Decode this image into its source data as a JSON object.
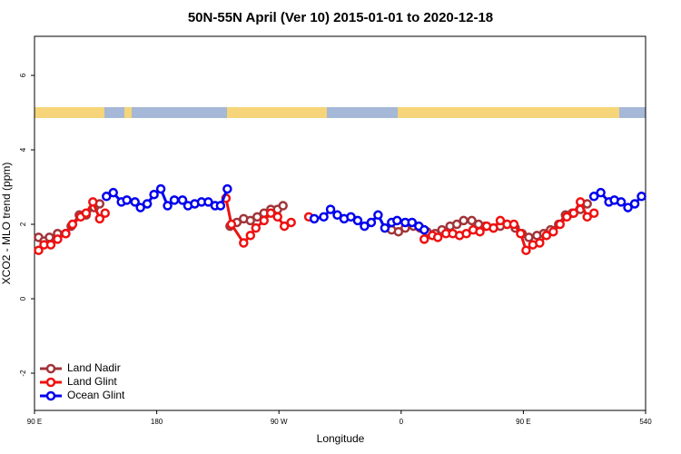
{
  "chart_data": {
    "type": "line",
    "title": "50N-55N April (Ver 10)   2015-01-01 to 2020-12-18",
    "x_label": "Longitude",
    "y_label": "XCO2 - MLO trend (ppm)",
    "xlim": [
      90,
      540
    ],
    "ylim": [
      -3,
      7.05
    ],
    "xticks": [
      {
        "value": 90,
        "label": "90 E"
      },
      180,
      {
        "value": 270,
        "label": "90 W"
      },
      {
        "value": 360,
        "label": "0"
      },
      {
        "value": 450,
        "label": "90 E"
      },
      540
    ],
    "yticks": [
      -2,
      0,
      2,
      4,
      6
    ],
    "legend": "bottomleft",
    "series": [
      {
        "name": "Land Nadir",
        "color": "#a0353a",
        "x": [
          93,
          97,
          101,
          107,
          113,
          117,
          123,
          128,
          134,
          138,
          null,
          234,
          239,
          244,
          249,
          254,
          259,
          264,
          269,
          273,
          null,
          353,
          358,
          363,
          369,
          374,
          379,
          385,
          390,
          396,
          401,
          406,
          412,
          417,
          422,
          428,
          433,
          438,
          444,
          449,
          454,
          460,
          465,
          470,
          476,
          481,
          486,
          492,
          497
        ],
        "values": [
          1.65,
          1.55,
          1.65,
          1.75,
          1.75,
          1.95,
          2.25,
          2.25,
          2.45,
          2.55,
          null,
          1.95,
          2.05,
          2.15,
          2.1,
          2.2,
          2.3,
          2.4,
          2.4,
          2.5,
          null,
          1.85,
          1.8,
          1.9,
          1.95,
          1.9,
          1.8,
          1.75,
          1.85,
          1.95,
          2.0,
          2.1,
          2.1,
          2.0,
          1.95,
          1.9,
          1.95,
          2.0,
          1.9,
          1.75,
          1.65,
          1.7,
          1.75,
          1.85,
          2.0,
          2.25,
          2.3,
          2.4,
          2.55
        ]
      },
      {
        "name": "Land Glint",
        "color": "#ee1111",
        "x": [
          93,
          97,
          102,
          107,
          113,
          118,
          124,
          128,
          133,
          138,
          142,
          null,
          231,
          235,
          244,
          249,
          253,
          259,
          264,
          269,
          274,
          279,
          null,
          292,
          null,
          377,
          383,
          387,
          393,
          398,
          403,
          408,
          413,
          418,
          423,
          428,
          433,
          438,
          443,
          448,
          452,
          457,
          462,
          467,
          472,
          477,
          482,
          487,
          492,
          497,
          502
        ],
        "values": [
          1.3,
          1.45,
          1.45,
          1.6,
          1.75,
          2.0,
          2.2,
          2.3,
          2.6,
          2.15,
          2.3,
          null,
          2.7,
          2.0,
          1.5,
          1.7,
          1.9,
          2.1,
          2.3,
          2.2,
          1.95,
          2.05,
          null,
          2.2,
          null,
          1.6,
          1.7,
          1.65,
          1.75,
          1.75,
          1.7,
          1.75,
          1.85,
          1.8,
          1.95,
          1.9,
          2.1,
          2.0,
          2.0,
          1.75,
          1.3,
          1.45,
          1.5,
          1.7,
          1.8,
          2.0,
          2.2,
          2.3,
          2.6,
          2.2,
          2.3
        ]
      },
      {
        "name": "Ocean Glint",
        "color": "#0000ee",
        "x": [
          143,
          148,
          154,
          158,
          164,
          168,
          173,
          178,
          183,
          188,
          193,
          199,
          203,
          208,
          213,
          218,
          223,
          227,
          232,
          null,
          296,
          303,
          308,
          313,
          318,
          323,
          328,
          333,
          338,
          343,
          348,
          353,
          357,
          363,
          368,
          373,
          377,
          null,
          502,
          507,
          513,
          517,
          522,
          527,
          532,
          537
        ],
        "values": [
          2.75,
          2.85,
          2.6,
          2.65,
          2.6,
          2.45,
          2.55,
          2.8,
          2.95,
          2.5,
          2.65,
          2.65,
          2.5,
          2.55,
          2.6,
          2.6,
          2.5,
          2.5,
          2.95,
          null,
          2.15,
          2.2,
          2.4,
          2.25,
          2.15,
          2.2,
          2.1,
          1.95,
          2.05,
          2.25,
          1.9,
          2.05,
          2.1,
          2.05,
          2.05,
          1.95,
          1.85,
          null,
          2.75,
          2.85,
          2.6,
          2.65,
          2.6,
          2.45,
          2.55,
          2.75
        ]
      }
    ]
  }
}
